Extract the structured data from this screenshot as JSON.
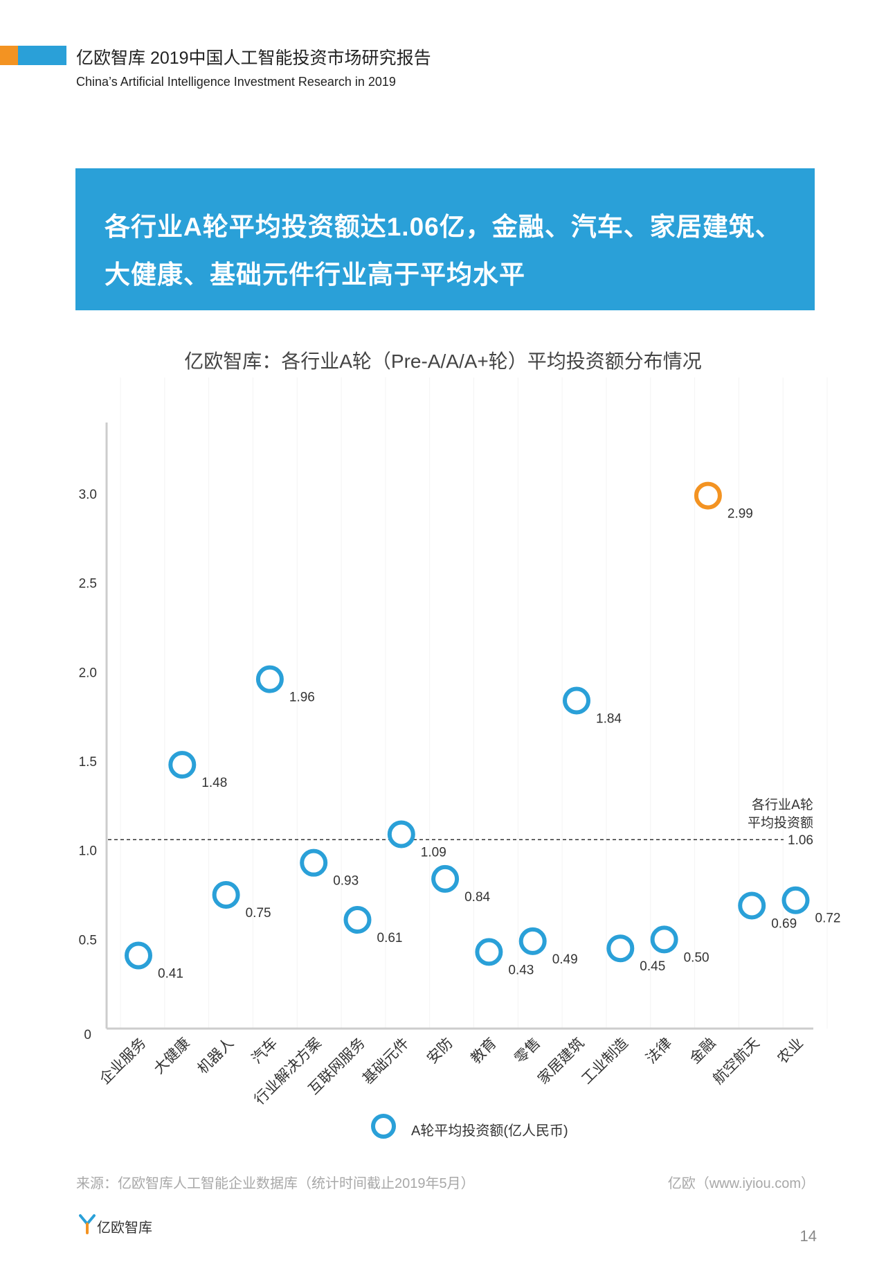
{
  "header": {
    "title": "亿欧智库 2019中国人工智能投资市场研究报告",
    "subtitle": "China’s Artificial Intelligence Investment Research in 2019"
  },
  "banner": {
    "line1": "各行业A轮平均投资额达1.06亿，金融、汽车、家居建筑、",
    "line2": "大健康、基础元件行业高于平均水平"
  },
  "chart_data": {
    "type": "scatter",
    "title": "亿欧智库：各行业A轮（Pre-A/A/A+轮）平均投资额分布情况",
    "categories": [
      "企业服务",
      "大健康",
      "机器人",
      "汽车",
      "行业解决方案",
      "互联网服务",
      "基础元件",
      "安防",
      "教育",
      "零售",
      "家居建筑",
      "工业制造",
      "法律",
      "金融",
      "航空航天",
      "农业"
    ],
    "values": [
      0.41,
      1.48,
      0.75,
      1.96,
      0.93,
      0.61,
      1.09,
      0.84,
      0.43,
      0.49,
      1.84,
      0.45,
      0.5,
      2.99,
      0.69,
      0.72
    ],
    "highlight": "金融",
    "yticks": [
      "0",
      "0.5",
      "1.0",
      "1.5",
      "2.0",
      "2.5",
      "3.0"
    ],
    "ylim": [
      0,
      3.5
    ],
    "average": {
      "value": 1.06,
      "label_line1": "各行业A轮",
      "label_line2": "平均投资额",
      "value_label": "1.06"
    },
    "legend": "A轮平均投资额(亿人民币)",
    "colors": {
      "marker": "#2aa0d8",
      "highlight": "#f39322",
      "banner": "#2aa0d8"
    }
  },
  "footer": {
    "source": "来源：亿欧智库人工智能企业数据库（统计时间截止2019年5月）",
    "site": "亿欧（www.iyiou.com）",
    "logo_text": "亿欧智库",
    "page_number": "14"
  }
}
